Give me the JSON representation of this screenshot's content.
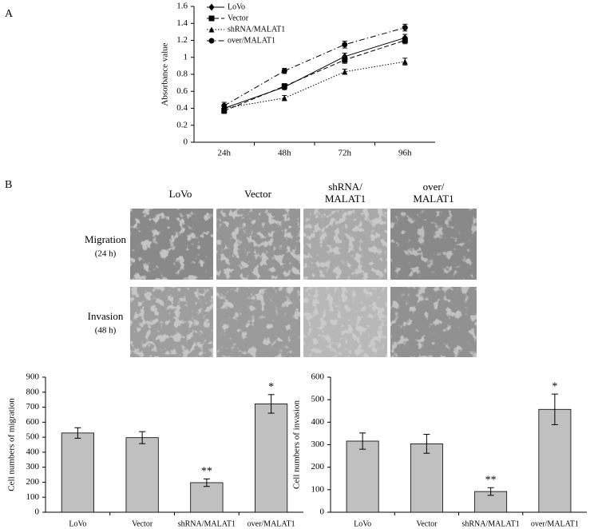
{
  "figure": {
    "panel_a": "A",
    "panel_b": "B",
    "columns": [
      "LoVo",
      "Vector",
      "shRNA/ MALAT1",
      "over/ MALAT1"
    ],
    "rows": [
      {
        "label": "Migration",
        "time": "(24 h)"
      },
      {
        "label": "Invasion",
        "time": "(48 h)"
      }
    ]
  },
  "chart_data": [
    {
      "type": "line",
      "ylabel": "Absorbance value",
      "categories": [
        "24h",
        "48h",
        "72h",
        "96h"
      ],
      "ylim": [
        0,
        1.6
      ],
      "yticks": [
        0,
        0.2,
        0.4,
        0.6,
        0.8,
        1,
        1.2,
        1.4,
        1.6
      ],
      "legend": "upper left",
      "series": [
        {
          "name": "LoVo",
          "color": "#000000",
          "marker": "diamond",
          "dash": "solid",
          "values": [
            0.4,
            0.65,
            1.01,
            1.23
          ],
          "errors": [
            0.03,
            0.03,
            0.04,
            0.04
          ]
        },
        {
          "name": "Vector",
          "color": "#000000",
          "marker": "square",
          "dash": "dashed",
          "values": [
            0.37,
            0.66,
            0.97,
            1.2
          ],
          "errors": [
            0.03,
            0.03,
            0.04,
            0.04
          ]
        },
        {
          "name": "shRNA/MALAT1",
          "color": "#000000",
          "marker": "triangle",
          "dash": "dotted",
          "values": [
            0.4,
            0.52,
            0.83,
            0.95
          ],
          "errors": [
            0.03,
            0.03,
            0.03,
            0.04
          ]
        },
        {
          "name": "over/MALAT1",
          "color": "#000000",
          "marker": "circle",
          "dash": "dashdot",
          "values": [
            0.43,
            0.84,
            1.15,
            1.35
          ],
          "errors": [
            0.04,
            0.03,
            0.04,
            0.04
          ]
        }
      ]
    },
    {
      "type": "bar",
      "ylabel": "Cell numbers of migration",
      "categories": [
        "LoVo",
        "Vector",
        "shRNA/MALAT1",
        "over/MALAT1"
      ],
      "values": [
        528,
        497,
        197,
        722
      ],
      "errors": [
        35,
        40,
        25,
        62
      ],
      "significance": [
        null,
        null,
        "**",
        "*"
      ],
      "color": "#c0c0c0",
      "ylim": [
        0,
        900
      ],
      "yticks": [
        0,
        100,
        200,
        300,
        400,
        500,
        600,
        700,
        800,
        900
      ]
    },
    {
      "type": "bar",
      "ylabel": "Cell numbers of invasion",
      "categories": [
        "LoVo",
        "Vector",
        "shRNA/MALAT1",
        "over/MALAT1"
      ],
      "values": [
        316,
        304,
        92,
        457
      ],
      "errors": [
        36,
        42,
        17,
        68
      ],
      "significance": [
        null,
        null,
        "**",
        "*"
      ],
      "color": "#c0c0c0",
      "ylim": [
        0,
        600
      ],
      "yticks": [
        0,
        100,
        200,
        300,
        400,
        500,
        600
      ]
    }
  ]
}
